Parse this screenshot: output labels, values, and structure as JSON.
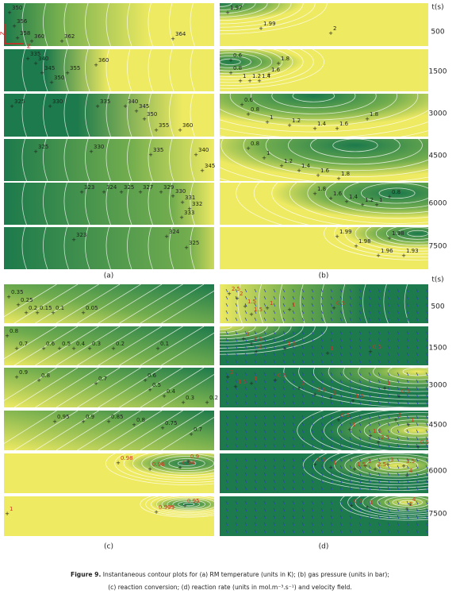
{
  "figure": {
    "axes_marks": [
      "z",
      "z"
    ],
    "time_axis_top": {
      "title": "t(s)",
      "times": [
        "500",
        "1500",
        "3000",
        "4500",
        "6000",
        "7500"
      ]
    },
    "time_axis_bottom": {
      "title": "t(s)",
      "times": [
        "500",
        "1500",
        "3000",
        "4500",
        "6000",
        "7500"
      ]
    },
    "panels": {
      "a": {
        "label": "(a)",
        "rows": [
          {
            "label_color": "#222222",
            "contours": [
              "350",
              "356",
              "358",
              "360",
              "362",
              "364"
            ]
          },
          {
            "label_color": "#222222",
            "contours": [
              "335",
              "340",
              "345",
              "350",
              "355",
              "360"
            ]
          },
          {
            "label_color": "#222222",
            "contours": [
              "325",
              "330",
              "335",
              "340",
              "345",
              "350",
              "355",
              "360"
            ]
          },
          {
            "label_color": "#222222",
            "contours": [
              "325",
              "330",
              "335",
              "340",
              "345"
            ]
          },
          {
            "label_color": "#222222",
            "contours": [
              "323",
              "324",
              "325",
              "327",
              "329",
              "330",
              "331",
              "332",
              "333"
            ]
          },
          {
            "label_color": "#222222",
            "contours": [
              "323",
              "324",
              "325"
            ]
          }
        ]
      },
      "b": {
        "label": "(b)",
        "rows": [
          {
            "label_color": "#222222",
            "contours": [
              "1.97",
              "1.99",
              "2"
            ]
          },
          {
            "label_color": "#222222",
            "contours": [
              "0.6",
              "0.8",
              "1",
              "1.2",
              "1.4",
              "1.6",
              "1.8"
            ]
          },
          {
            "label_color": "#222222",
            "contours": [
              "0.6",
              "0.8",
              "1",
              "1.2",
              "1.4",
              "1.6",
              "1.8"
            ]
          },
          {
            "label_color": "#222222",
            "contours": [
              "0.8",
              "1",
              "1.2",
              "1.4",
              "1.6",
              "1.8"
            ]
          },
          {
            "label_color": "#222222",
            "contours": [
              "1.8",
              "1.6",
              "1.4",
              "1.2",
              "1",
              "0.8"
            ]
          },
          {
            "label_color": "#222222",
            "contours": [
              "1.99",
              "1.98",
              "1.96",
              "1.93",
              "1.98"
            ]
          }
        ]
      },
      "c": {
        "label": "(c)",
        "rows": [
          {
            "label_color": "#222222",
            "contours": [
              "0.35",
              "0.25",
              "0.2",
              "0.15",
              "0.1",
              "0.05"
            ]
          },
          {
            "label_color": "#222222",
            "contours": [
              "0.8",
              "0.7",
              "0.6",
              "0.5",
              "0.4",
              "0.3",
              "0.2",
              "0.1"
            ]
          },
          {
            "label_color": "#222222",
            "contours": [
              "0.9",
              "0.8",
              "0.7",
              "0.6",
              "0.5",
              "0.4",
              "0.3",
              "0.2"
            ]
          },
          {
            "label_color": "#222222",
            "contours": [
              "0.95",
              "0.9",
              "0.85",
              "0.8",
              "0.75",
              "0.7"
            ]
          },
          {
            "label_color": "#d9301c",
            "contours": [
              "0.98",
              "0.96",
              "0.94",
              "0.9"
            ]
          },
          {
            "label_color": "#d9301c",
            "contours": [
              "1",
              "0.999",
              "0.95"
            ]
          }
        ]
      },
      "d": {
        "label": "(d)",
        "rows": [
          {
            "label_color": "#d9301c",
            "contours": [
              "2.5",
              "2",
              "1.5",
              "1.5",
              "1",
              "1",
              "0.5"
            ]
          },
          {
            "label_color": "#d9301c",
            "contours": [
              "3",
              "2.5",
              "2",
              "1.5",
              "1",
              "0.5"
            ]
          },
          {
            "label_color": "#d9301c",
            "contours": [
              "2",
              "1.5",
              "1",
              "0.5",
              "3",
              "2.5",
              "2",
              "1.5",
              "1",
              "0.5"
            ]
          },
          {
            "label_color": "#d9301c",
            "contours": [
              "0.5",
              "1",
              "1.5",
              "2.5",
              "3",
              "1",
              "0.5"
            ]
          },
          {
            "label_color": "#d9301c",
            "contours": [
              "0.5",
              "1",
              "1.5",
              "2",
              "2.5",
              "3",
              "3.5",
              "4"
            ]
          },
          {
            "label_color": "#d9301c",
            "contours": [
              "0.5",
              "1",
              "2",
              "4"
            ]
          }
        ]
      }
    },
    "caption": {
      "figure": "Figure 9.",
      "lines": [
        "Instantaneous contour plots for (a) RM temperature (units in K); (b) gas pressure (units in bar);",
        "(c) reaction conversion; (d) reaction rate (units in mol.m⁻³.s⁻¹) and velocity field."
      ]
    }
  }
}
